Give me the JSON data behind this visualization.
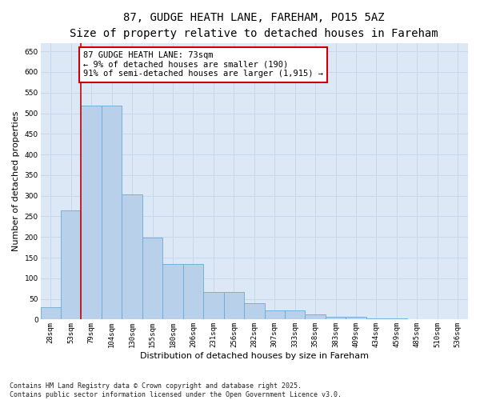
{
  "title_line1": "87, GUDGE HEATH LANE, FAREHAM, PO15 5AZ",
  "title_line2": "Size of property relative to detached houses in Fareham",
  "xlabel": "Distribution of detached houses by size in Fareham",
  "ylabel": "Number of detached properties",
  "categories": [
    "28sqm",
    "53sqm",
    "79sqm",
    "104sqm",
    "130sqm",
    "155sqm",
    "180sqm",
    "206sqm",
    "231sqm",
    "256sqm",
    "282sqm",
    "307sqm",
    "333sqm",
    "358sqm",
    "383sqm",
    "409sqm",
    "434sqm",
    "459sqm",
    "485sqm",
    "510sqm",
    "536sqm"
  ],
  "values": [
    30,
    265,
    518,
    518,
    303,
    198,
    135,
    135,
    67,
    67,
    40,
    22,
    22,
    13,
    6,
    6,
    2,
    2,
    1,
    1,
    1
  ],
  "bar_color": "#b8d0ea",
  "bar_edge_color": "#6aaad4",
  "vline_x_idx": 1.5,
  "vline_color": "#cc0000",
  "annotation_text": "87 GUDGE HEATH LANE: 73sqm\n← 9% of detached houses are smaller (190)\n91% of semi-detached houses are larger (1,915) →",
  "annotation_box_edgecolor": "#cc0000",
  "ylim": [
    0,
    670
  ],
  "yticks": [
    0,
    50,
    100,
    150,
    200,
    250,
    300,
    350,
    400,
    450,
    500,
    550,
    600,
    650
  ],
  "grid_color": "#c5d8ec",
  "background_color": "#dce8f5",
  "footer_text": "Contains HM Land Registry data © Crown copyright and database right 2025.\nContains public sector information licensed under the Open Government Licence v3.0.",
  "title_fontsize": 10,
  "subtitle_fontsize": 9,
  "axis_label_fontsize": 8,
  "tick_fontsize": 6.5,
  "annotation_fontsize": 7.5,
  "footer_fontsize": 6
}
